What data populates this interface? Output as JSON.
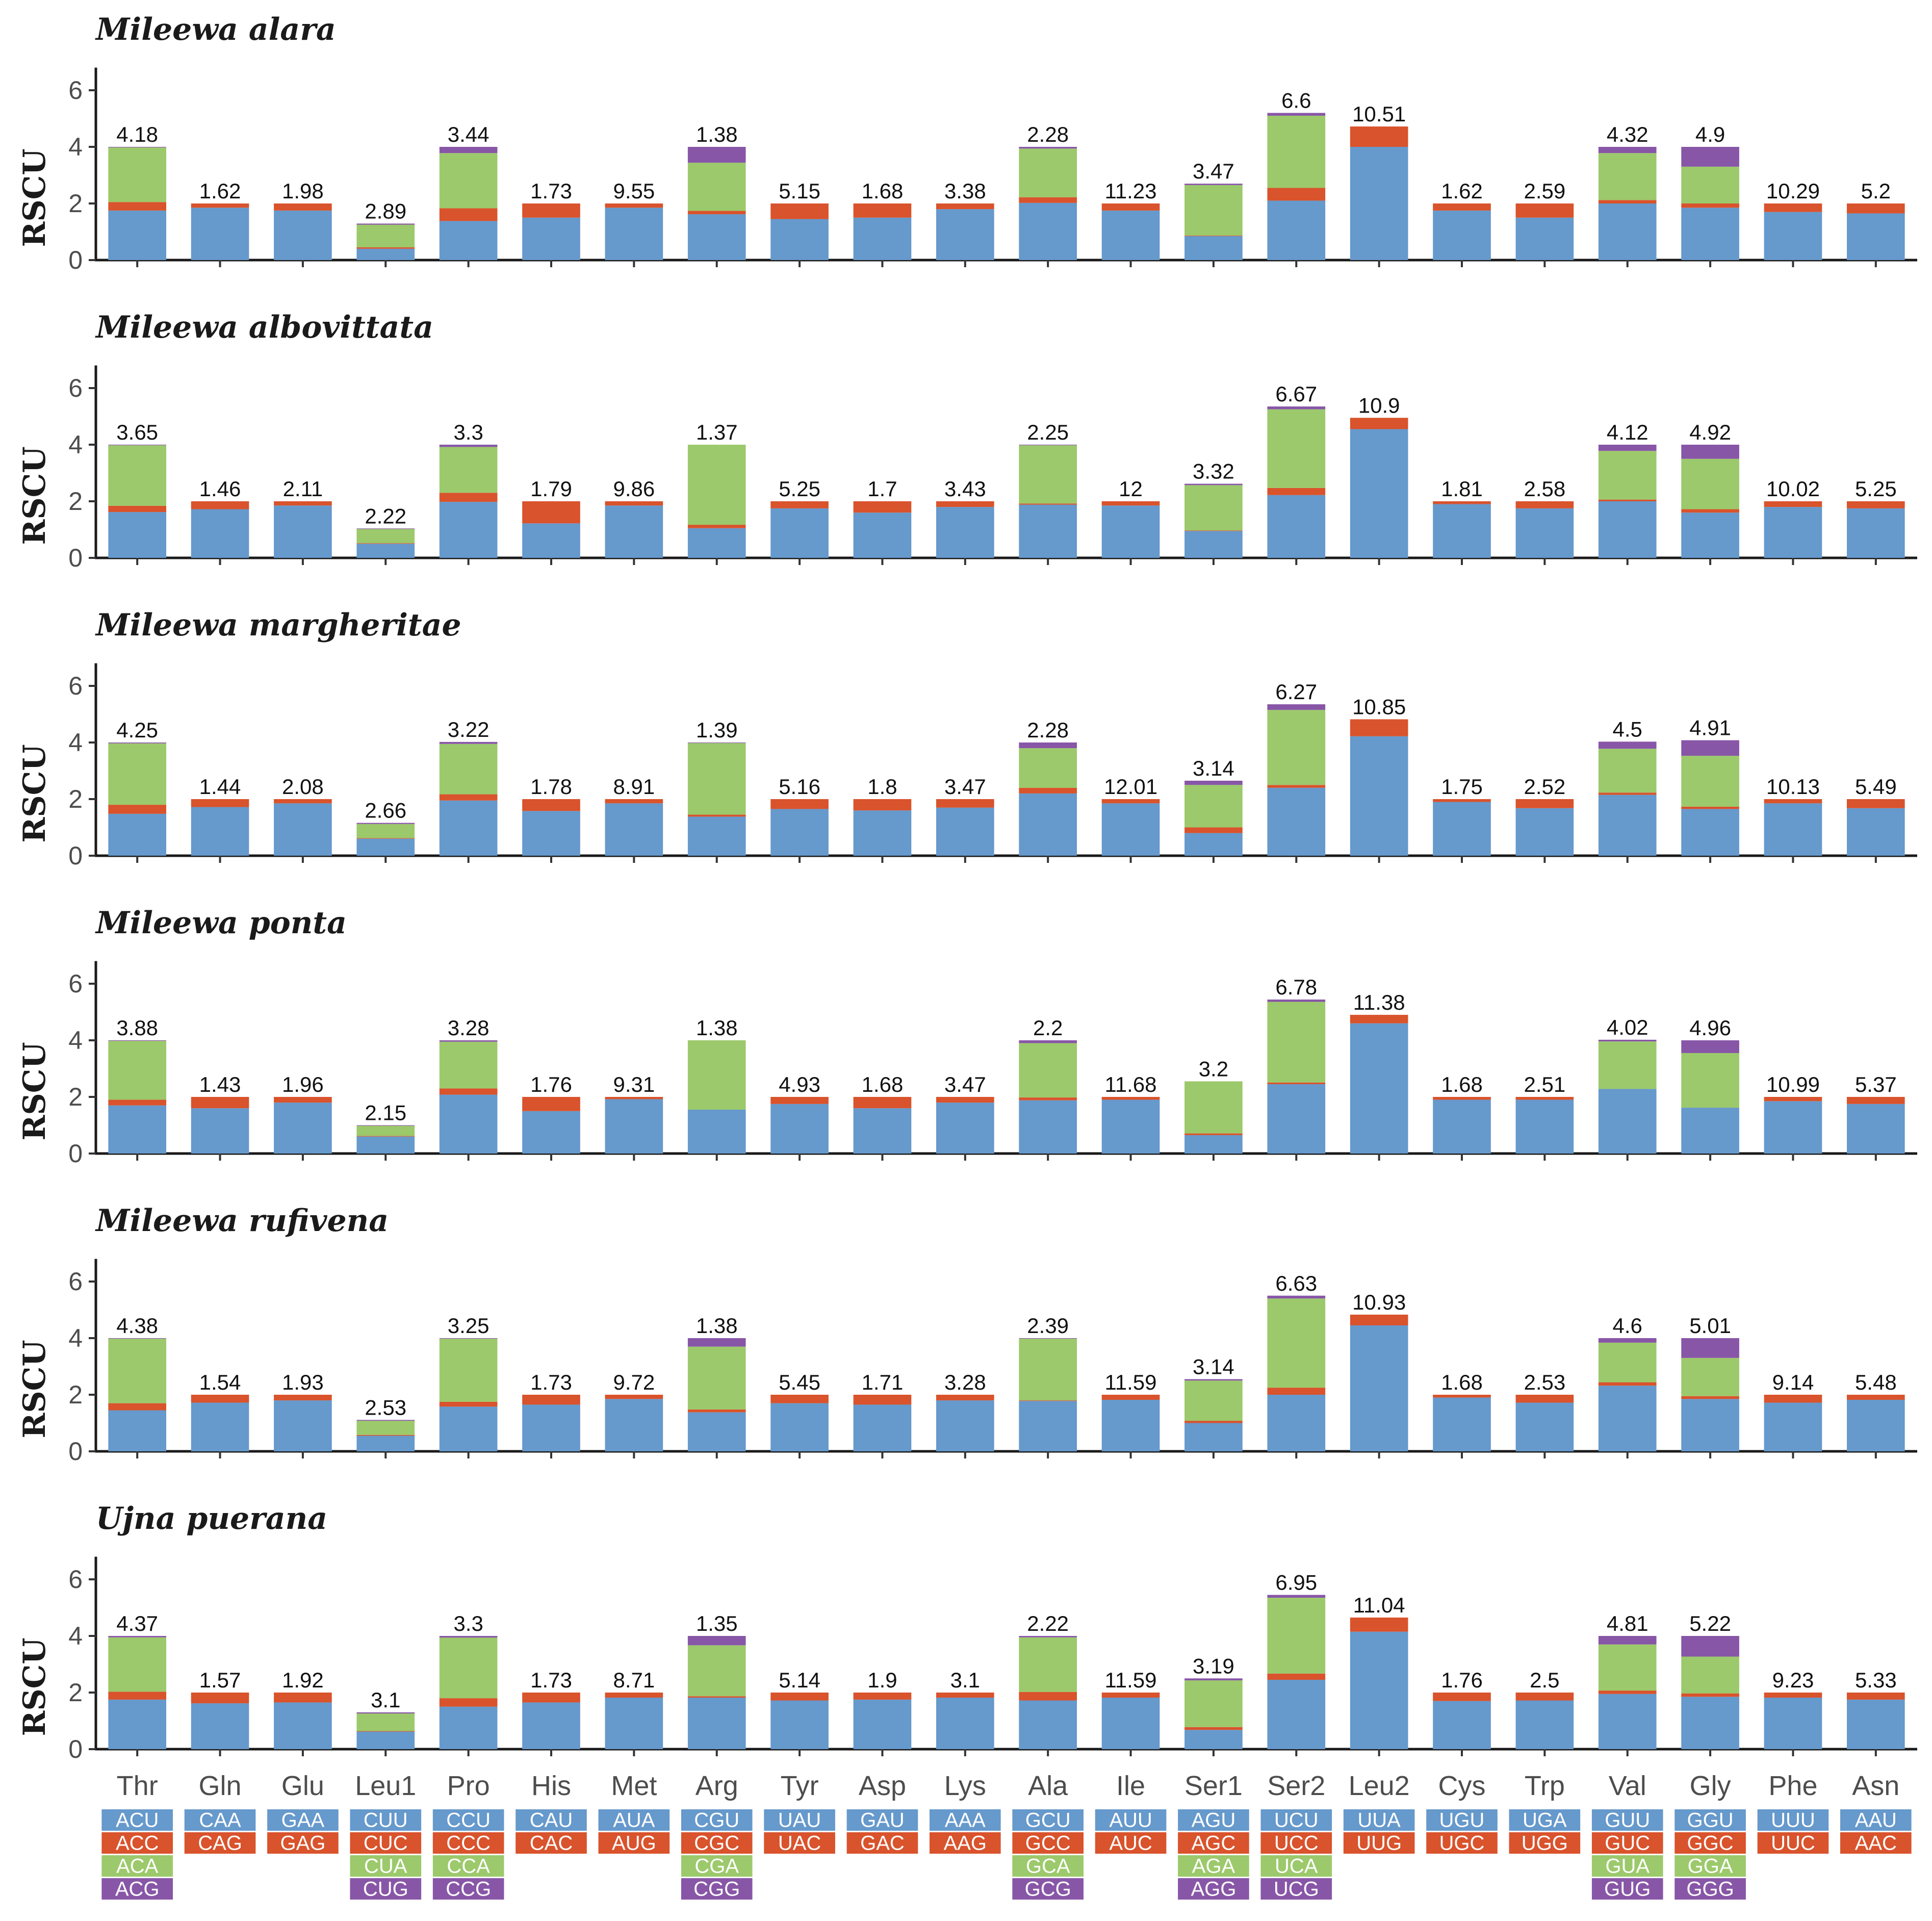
{
  "chart_data": {
    "type": "stacked-bar",
    "ylabel": "RSCU",
    "ylim": [
      0,
      6.8
    ],
    "yticks": [
      0,
      2,
      4,
      6
    ],
    "categories": [
      "Thr",
      "Gln",
      "Glu",
      "Leu1",
      "Pro",
      "His",
      "Met",
      "Arg",
      "Tyr",
      "Asp",
      "Lys",
      "Ala",
      "Ile",
      "Ser1",
      "Ser2",
      "Leu2",
      "Cys",
      "Trp",
      "Val",
      "Gly",
      "Phe",
      "Asn"
    ],
    "colors": [
      "#6699CC",
      "#D9532C",
      "#9CC96B",
      "#8856A7"
    ],
    "codons": [
      [
        "ACU",
        "ACC",
        "ACA",
        "ACG"
      ],
      [
        "CAA",
        "CAG"
      ],
      [
        "GAA",
        "GAG"
      ],
      [
        "CUU",
        "CUC",
        "CUA",
        "CUG"
      ],
      [
        "CCU",
        "CCC",
        "CCA",
        "CCG"
      ],
      [
        "CAU",
        "CAC"
      ],
      [
        "AUA",
        "AUG"
      ],
      [
        "CGU",
        "CGC",
        "CGA",
        "CGG"
      ],
      [
        "UAU",
        "UAC"
      ],
      [
        "GAU",
        "GAC"
      ],
      [
        "AAA",
        "AAG"
      ],
      [
        "GCU",
        "GCC",
        "GCA",
        "GCG"
      ],
      [
        "AUU",
        "AUC"
      ],
      [
        "AGU",
        "AGC",
        "AGA",
        "AGG"
      ],
      [
        "UCU",
        "UCC",
        "UCA",
        "UCG"
      ],
      [
        "UUA",
        "UUG"
      ],
      [
        "UGU",
        "UGC"
      ],
      [
        "UGA",
        "UGG"
      ],
      [
        "GUU",
        "GUC",
        "GUA",
        "GUG"
      ],
      [
        "GGU",
        "GGC",
        "GGA",
        "GGG"
      ],
      [
        "UUU",
        "UUC"
      ],
      [
        "AAU",
        "AAC"
      ]
    ],
    "panels": [
      {
        "title": "Mileewa alara",
        "labels": [
          "4.18",
          "1.62",
          "1.98",
          "2.89",
          "3.44",
          "1.73",
          "9.55",
          "1.38",
          "5.15",
          "1.68",
          "3.38",
          "2.28",
          "11.23",
          "3.47",
          "6.6",
          "10.51",
          "1.62",
          "2.59",
          "4.32",
          "4.9",
          "10.29",
          "5.2"
        ],
        "stacks": [
          [
            1.75,
            0.3,
            1.93,
            0.02
          ],
          [
            1.85,
            0.15
          ],
          [
            1.75,
            0.25
          ],
          [
            0.4,
            0.05,
            0.8,
            0.04
          ],
          [
            1.38,
            0.45,
            1.95,
            0.22
          ],
          [
            1.5,
            0.5
          ],
          [
            1.85,
            0.15
          ],
          [
            1.62,
            0.12,
            1.7,
            0.56
          ],
          [
            1.45,
            0.55
          ],
          [
            1.5,
            0.5
          ],
          [
            1.8,
            0.2
          ],
          [
            2.02,
            0.2,
            1.72,
            0.06
          ],
          [
            1.75,
            0.25
          ],
          [
            0.85,
            0.02,
            1.78,
            0.05
          ],
          [
            2.1,
            0.45,
            2.55,
            0.1
          ],
          [
            4.0,
            0.72
          ],
          [
            1.75,
            0.25
          ],
          [
            1.5,
            0.5
          ],
          [
            2.0,
            0.12,
            1.66,
            0.22
          ],
          [
            1.85,
            0.15,
            1.3,
            0.7
          ],
          [
            1.7,
            0.3
          ],
          [
            1.65,
            0.35
          ]
        ]
      },
      {
        "title": "Mileewa albovittata",
        "labels": [
          "3.65",
          "1.46",
          "2.11",
          "2.22",
          "3.3",
          "1.79",
          "9.86",
          "1.37",
          "5.25",
          "1.7",
          "3.43",
          "2.25",
          "12",
          "3.32",
          "6.67",
          "10.9",
          "1.81",
          "2.58",
          "4.12",
          "4.92",
          "10.02",
          "5.25"
        ],
        "stacks": [
          [
            1.62,
            0.22,
            2.14,
            0.02
          ],
          [
            1.72,
            0.28
          ],
          [
            1.85,
            0.15
          ],
          [
            0.5,
            0.02,
            0.5,
            0.02
          ],
          [
            1.98,
            0.32,
            1.62,
            0.08
          ],
          [
            1.22,
            0.78
          ],
          [
            1.85,
            0.15
          ],
          [
            1.05,
            0.12,
            2.83,
            0.0
          ],
          [
            1.75,
            0.25
          ],
          [
            1.6,
            0.4
          ],
          [
            1.8,
            0.2
          ],
          [
            1.88,
            0.04,
            2.06,
            0.02
          ],
          [
            1.85,
            0.15
          ],
          [
            0.95,
            0.02,
            1.6,
            0.05
          ],
          [
            2.22,
            0.25,
            2.78,
            0.1
          ],
          [
            4.55,
            0.4
          ],
          [
            1.9,
            0.1
          ],
          [
            1.75,
            0.25
          ],
          [
            2.0,
            0.06,
            1.72,
            0.22
          ],
          [
            1.6,
            0.12,
            1.78,
            0.5
          ],
          [
            1.8,
            0.2
          ],
          [
            1.75,
            0.25
          ]
        ]
      },
      {
        "title": "Mileewa margheritae",
        "labels": [
          "4.25",
          "1.44",
          "2.08",
          "2.66",
          "3.22",
          "1.78",
          "8.91",
          "1.39",
          "5.16",
          "1.8",
          "3.47",
          "2.28",
          "12.01",
          "3.14",
          "6.27",
          "10.85",
          "1.75",
          "2.52",
          "4.5",
          "4.91",
          "10.13",
          "5.49"
        ],
        "stacks": [
          [
            1.48,
            0.32,
            2.17,
            0.03
          ],
          [
            1.72,
            0.28
          ],
          [
            1.85,
            0.15
          ],
          [
            0.6,
            0.02,
            0.5,
            0.04
          ],
          [
            1.95,
            0.22,
            1.78,
            0.07
          ],
          [
            1.58,
            0.42
          ],
          [
            1.85,
            0.15
          ],
          [
            1.38,
            0.07,
            2.53,
            0.02
          ],
          [
            1.65,
            0.35
          ],
          [
            1.6,
            0.4
          ],
          [
            1.7,
            0.3
          ],
          [
            2.2,
            0.2,
            1.4,
            0.2
          ],
          [
            1.85,
            0.15
          ],
          [
            0.8,
            0.2,
            1.5,
            0.15
          ],
          [
            2.4,
            0.1,
            2.65,
            0.2
          ],
          [
            4.22,
            0.6
          ],
          [
            1.9,
            0.1
          ],
          [
            1.68,
            0.32
          ],
          [
            2.15,
            0.08,
            1.55,
            0.25
          ],
          [
            1.65,
            0.08,
            1.8,
            0.55
          ],
          [
            1.85,
            0.15
          ],
          [
            1.68,
            0.32
          ]
        ]
      },
      {
        "title": "Mileewa ponta",
        "labels": [
          "3.88",
          "1.43",
          "1.96",
          "2.15",
          "3.28",
          "1.76",
          "9.31",
          "1.38",
          "4.93",
          "1.68",
          "3.47",
          "2.2",
          "11.68",
          "3.2",
          "6.78",
          "11.38",
          "1.68",
          "2.51",
          "4.02",
          "4.96",
          "10.99",
          "5.37"
        ],
        "stacks": [
          [
            1.7,
            0.2,
            2.08,
            0.02
          ],
          [
            1.6,
            0.4
          ],
          [
            1.8,
            0.2
          ],
          [
            0.6,
            0.02,
            0.36,
            0.02
          ],
          [
            2.08,
            0.22,
            1.65,
            0.05
          ],
          [
            1.5,
            0.5
          ],
          [
            1.92,
            0.08
          ],
          [
            1.55,
            0.0,
            2.45,
            0.0
          ],
          [
            1.75,
            0.25
          ],
          [
            1.6,
            0.4
          ],
          [
            1.8,
            0.2
          ],
          [
            1.88,
            0.1,
            1.92,
            0.1
          ],
          [
            1.9,
            0.1
          ],
          [
            0.65,
            0.06,
            1.84,
            0.0
          ],
          [
            2.45,
            0.06,
            2.85,
            0.08
          ],
          [
            4.6,
            0.3
          ],
          [
            1.9,
            0.1
          ],
          [
            1.9,
            0.1
          ],
          [
            2.28,
            0.0,
            1.68,
            0.06
          ],
          [
            1.62,
            0.0,
            1.93,
            0.45
          ],
          [
            1.85,
            0.15
          ],
          [
            1.75,
            0.25
          ]
        ]
      },
      {
        "title": "Mileewa rufivena",
        "labels": [
          "4.38",
          "1.54",
          "1.93",
          "2.53",
          "3.25",
          "1.73",
          "9.72",
          "1.38",
          "5.45",
          "1.71",
          "3.28",
          "2.39",
          "11.59",
          "3.14",
          "6.63",
          "10.93",
          "1.68",
          "2.53",
          "4.6",
          "5.01",
          "9.14",
          "5.48"
        ],
        "stacks": [
          [
            1.45,
            0.25,
            2.28,
            0.02
          ],
          [
            1.72,
            0.28
          ],
          [
            1.8,
            0.2
          ],
          [
            0.55,
            0.03,
            0.5,
            0.03
          ],
          [
            1.58,
            0.17,
            2.23,
            0.02
          ],
          [
            1.65,
            0.35
          ],
          [
            1.85,
            0.15
          ],
          [
            1.38,
            0.1,
            2.22,
            0.3
          ],
          [
            1.7,
            0.3
          ],
          [
            1.65,
            0.35
          ],
          [
            1.8,
            0.2
          ],
          [
            1.78,
            0.02,
            2.18,
            0.02
          ],
          [
            1.82,
            0.18
          ],
          [
            1.0,
            0.08,
            1.42,
            0.05
          ],
          [
            2.0,
            0.25,
            3.15,
            0.1
          ],
          [
            4.45,
            0.38
          ],
          [
            1.9,
            0.1
          ],
          [
            1.72,
            0.28
          ],
          [
            2.32,
            0.12,
            1.4,
            0.16
          ],
          [
            1.85,
            0.1,
            1.35,
            0.7
          ],
          [
            1.72,
            0.28
          ],
          [
            1.82,
            0.18
          ]
        ]
      },
      {
        "title": "Ujna puerana",
        "labels": [
          "4.37",
          "1.57",
          "1.92",
          "3.1",
          "3.3",
          "1.73",
          "8.71",
          "1.35",
          "5.14",
          "1.9",
          "3.1",
          "2.22",
          "11.59",
          "3.19",
          "6.95",
          "11.04",
          "1.76",
          "2.5",
          "4.81",
          "5.22",
          "9.23",
          "5.33"
        ],
        "stacks": [
          [
            1.75,
            0.28,
            1.92,
            0.05
          ],
          [
            1.62,
            0.38
          ],
          [
            1.65,
            0.35
          ],
          [
            0.62,
            0.02,
            0.62,
            0.04
          ],
          [
            1.5,
            0.3,
            2.14,
            0.06
          ],
          [
            1.65,
            0.35
          ],
          [
            1.82,
            0.18
          ],
          [
            1.82,
            0.05,
            1.8,
            0.33
          ],
          [
            1.72,
            0.28
          ],
          [
            1.75,
            0.25
          ],
          [
            1.82,
            0.18
          ],
          [
            1.72,
            0.3,
            1.93,
            0.05
          ],
          [
            1.82,
            0.18
          ],
          [
            0.68,
            0.1,
            1.65,
            0.07
          ],
          [
            2.45,
            0.22,
            2.68,
            0.1
          ],
          [
            4.15,
            0.5
          ],
          [
            1.7,
            0.3
          ],
          [
            1.72,
            0.28
          ],
          [
            1.95,
            0.12,
            1.63,
            0.3
          ],
          [
            1.85,
            0.12,
            1.3,
            0.73
          ],
          [
            1.82,
            0.18
          ],
          [
            1.75,
            0.25
          ]
        ]
      }
    ]
  }
}
